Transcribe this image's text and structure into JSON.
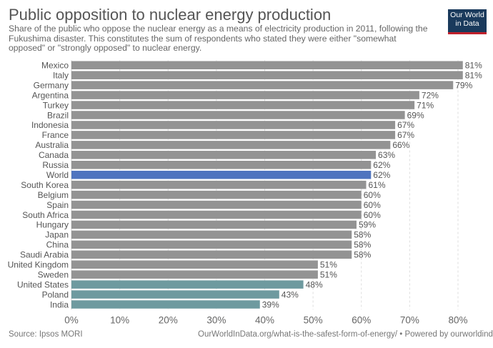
{
  "header": {
    "title": "Public opposition to nuclear energy production",
    "subtitle": "Share of the public who oppose the nuclear energy as a means of electricity production in 2011, following the Fukushima disaster. This constitutes the sum of respondents who stated they were either \"somewhat opposed\" or \"strongly opposed\" to nuclear energy.",
    "logo": "Our World in Data"
  },
  "footer": {
    "source": "Source: Ipsos MORI",
    "url": "OurWorldInData.org/what-is-the-safest-form-of-energy/ • Powered by ourworldindata.org"
  },
  "colors": {
    "default": "#939393",
    "world": "#4f74bf",
    "highlight": "#6e9a9f",
    "logo_bg": "#1a3a5c",
    "logo_accent": "#c0202c"
  },
  "chart_data": {
    "type": "bar",
    "orientation": "horizontal",
    "title": "Public opposition to nuclear energy production",
    "xlim": [
      0,
      80
    ],
    "grid": true,
    "unit": "%",
    "ticks": [
      "0%",
      "10%",
      "20%",
      "30%",
      "40%",
      "50%",
      "60%",
      "70%",
      "80%"
    ],
    "categories": [
      "Mexico",
      "Italy",
      "Germany",
      "Argentina",
      "Turkey",
      "Brazil",
      "Indonesia",
      "France",
      "Australia",
      "Canada",
      "Russia",
      "World",
      "South Korea",
      "Belgium",
      "Spain",
      "South Africa",
      "Hungary",
      "Japan",
      "China",
      "Saudi Arabia",
      "United Kingdom",
      "Sweden",
      "United States",
      "Poland",
      "India"
    ],
    "values": [
      81,
      81,
      79,
      72,
      71,
      69,
      67,
      67,
      66,
      63,
      62,
      62,
      61,
      60,
      60,
      60,
      59,
      58,
      58,
      58,
      51,
      51,
      48,
      43,
      39
    ],
    "labels": [
      "81%",
      "81%",
      "79%",
      "72%",
      "71%",
      "69%",
      "67%",
      "67%",
      "66%",
      "63%",
      "62%",
      "62%",
      "61%",
      "60%",
      "60%",
      "60%",
      "59%",
      "58%",
      "58%",
      "58%",
      "51%",
      "51%",
      "48%",
      "43%",
      "39%"
    ],
    "bar_colors": [
      "default",
      "default",
      "default",
      "default",
      "default",
      "default",
      "default",
      "default",
      "default",
      "default",
      "default",
      "world",
      "default",
      "default",
      "default",
      "default",
      "default",
      "default",
      "default",
      "default",
      "default",
      "default",
      "highlight",
      "highlight",
      "highlight"
    ]
  }
}
